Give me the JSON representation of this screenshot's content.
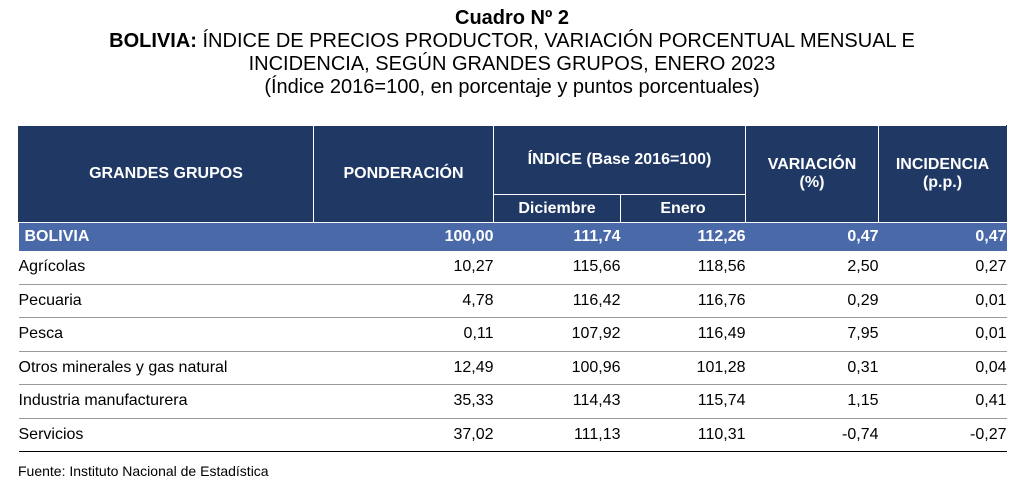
{
  "title": {
    "line1": "Cuadro Nº 2",
    "line2_bold": "BOLIVIA:",
    "line2_rest": " ÍNDICE DE PRECIOS PRODUCTOR, VARIACIÓN PORCENTUAL MENSUAL E",
    "line3": "INCIDENCIA, SEGÚN GRANDES GRUPOS, ENERO 2023",
    "line4": "(Índice 2016=100, en porcentaje y puntos porcentuales)"
  },
  "header": {
    "grupos": "GRANDES GRUPOS",
    "ponderacion": "PONDERACIÓN",
    "indice": "ÍNDICE (Base 2016=100)",
    "diciembre": "Diciembre",
    "enero": "Enero",
    "variacion_1": "VARIACIÓN",
    "variacion_2": "(%)",
    "incidencia_1": "INCIDENCIA",
    "incidencia_2": "(p.p.)"
  },
  "total": {
    "name": "BOLIVIA",
    "ponderacion": "100,00",
    "diciembre": "111,74",
    "enero": "112,26",
    "variacion": "0,47",
    "incidencia": "0,47"
  },
  "rows": [
    {
      "name": "Agrícolas",
      "ponderacion": "10,27",
      "diciembre": "115,66",
      "enero": "118,56",
      "variacion": "2,50",
      "incidencia": "0,27"
    },
    {
      "name": "Pecuaria",
      "ponderacion": "4,78",
      "diciembre": "116,42",
      "enero": "116,76",
      "variacion": "0,29",
      "incidencia": "0,01"
    },
    {
      "name": "Pesca",
      "ponderacion": "0,11",
      "diciembre": "107,92",
      "enero": "116,49",
      "variacion": "7,95",
      "incidencia": "0,01"
    },
    {
      "name": "Otros minerales y gas natural",
      "ponderacion": "12,49",
      "diciembre": "100,96",
      "enero": "101,28",
      "variacion": "0,31",
      "incidencia": "0,04"
    },
    {
      "name": "Industria manufacturera",
      "ponderacion": "35,33",
      "diciembre": "114,43",
      "enero": "115,74",
      "variacion": "1,15",
      "incidencia": "0,41"
    },
    {
      "name": "Servicios",
      "ponderacion": "37,02",
      "diciembre": "111,13",
      "enero": "110,31",
      "variacion": "-0,74",
      "incidencia": "-0,27"
    }
  ],
  "source": "Fuente: Instituto Nacional de Estadística",
  "colors": {
    "header_bg": "#1f3864",
    "total_bg": "#4a69a8"
  }
}
